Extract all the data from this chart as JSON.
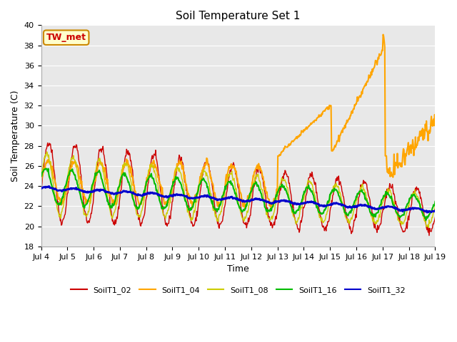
{
  "title": "Soil Temperature Set 1",
  "xlabel": "Time",
  "ylabel": "Soil Temperature (C)",
  "ylim": [
    18,
    40
  ],
  "yticks": [
    18,
    20,
    22,
    24,
    26,
    28,
    30,
    32,
    34,
    36,
    38,
    40
  ],
  "bg_color": "#e8e8e8",
  "annotation_text": "TW_met",
  "annotation_bg": "#ffffcc",
  "annotation_border": "#cc8800",
  "annotation_text_color": "#cc0000",
  "series": {
    "SoilT1_02": {
      "color": "#cc0000",
      "lw": 1.0
    },
    "SoilT1_04": {
      "color": "#ffa500",
      "lw": 1.5
    },
    "SoilT1_08": {
      "color": "#cccc00",
      "lw": 1.0
    },
    "SoilT1_16": {
      "color": "#00bb00",
      "lw": 1.5
    },
    "SoilT1_32": {
      "color": "#0000cc",
      "lw": 2.0
    }
  },
  "legend_colors": {
    "SoilT1_02": "#cc0000",
    "SoilT1_04": "#ffa500",
    "SoilT1_08": "#cccc00",
    "SoilT1_16": "#00bb00",
    "SoilT1_32": "#0000cc"
  }
}
